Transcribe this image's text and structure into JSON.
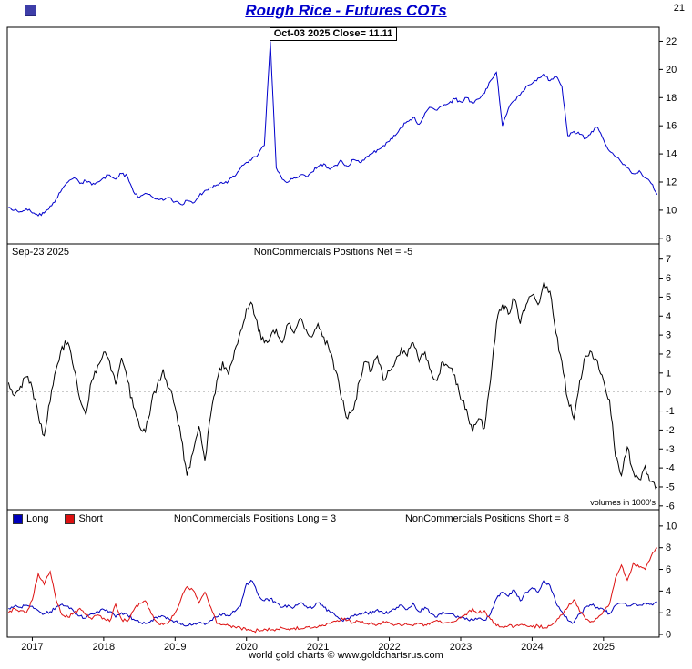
{
  "window": {
    "corner_number": "21"
  },
  "header": {
    "title": "Rough Rice - Futures COTs"
  },
  "footer": {
    "credit": "world gold charts © www.goldchartsrus.com"
  },
  "colors": {
    "title": "#0000cc",
    "price": "#0000cc",
    "net": "#000000",
    "long": "#0000bb",
    "short": "#dd1111",
    "axis_text": "#000000",
    "border": "#000000"
  },
  "x_axis": {
    "start": 2016.667,
    "step_years": 0.083333,
    "tick_years": [
      2017,
      2018,
      2019,
      2020,
      2021,
      2022,
      2023,
      2024,
      2025
    ]
  },
  "chart_data": [
    {
      "type": "line",
      "panel": "price",
      "label": "Oct-03 2025  Close= 11.11",
      "ylim": [
        7.6,
        23.0
      ],
      "yticks": [
        8,
        10,
        12,
        14,
        16,
        18,
        20,
        22
      ],
      "series": [
        {
          "name": "Close",
          "color": "#0000cc",
          "values": [
            10.2,
            10.0,
            9.9,
            10.1,
            9.8,
            9.6,
            9.8,
            10.3,
            10.8,
            11.5,
            12.0,
            12.3,
            11.9,
            12.1,
            11.8,
            12.0,
            12.3,
            12.5,
            12.2,
            12.6,
            12.4,
            11.3,
            10.9,
            11.2,
            11.0,
            10.8,
            10.7,
            10.9,
            10.6,
            10.4,
            10.7,
            10.5,
            11.0,
            11.4,
            11.6,
            11.8,
            11.9,
            12.1,
            12.4,
            13.0,
            13.4,
            13.7,
            14.0,
            14.6,
            22.0,
            13.0,
            12.2,
            12.0,
            12.3,
            12.5,
            12.4,
            12.7,
            13.1,
            13.3,
            12.9,
            13.2,
            13.5,
            13.1,
            13.6,
            13.4,
            13.7,
            14.0,
            14.3,
            14.6,
            14.9,
            15.3,
            15.9,
            16.3,
            16.6,
            16.1,
            16.9,
            17.3,
            17.1,
            17.4,
            17.6,
            17.9,
            17.7,
            18.0,
            17.6,
            17.9,
            18.3,
            19.2,
            19.8,
            16.0,
            17.2,
            17.8,
            18.2,
            18.8,
            19.0,
            19.4,
            19.7,
            19.2,
            19.5,
            18.8,
            15.3,
            15.6,
            15.4,
            15.1,
            15.6,
            15.9,
            15.0,
            14.2,
            13.8,
            13.4,
            13.0,
            12.6,
            12.8,
            12.3,
            11.9,
            11.11
          ]
        }
      ]
    },
    {
      "type": "line",
      "panel": "net",
      "date_label": "Sep-23  2025",
      "label": "NonCommercials Positions Net = -5",
      "note": "volumes in 1000's",
      "ylim": [
        -6.2,
        7.8
      ],
      "yticks": [
        -6,
        -5,
        -4,
        -3,
        -2,
        -1,
        0,
        1,
        2,
        3,
        4,
        5,
        6,
        7
      ],
      "zero_line": true,
      "series": [
        {
          "name": "Net",
          "color": "#000000",
          "values": [
            0.5,
            -0.2,
            0.3,
            0.8,
            0.2,
            -1.2,
            -2.3,
            -0.5,
            1.2,
            2.4,
            2.6,
            1.2,
            -0.4,
            -1.2,
            0.6,
            1.4,
            2.1,
            1.6,
            0.4,
            1.8,
            0.6,
            -0.8,
            -1.8,
            -2.1,
            -0.6,
            0.4,
            1.2,
            0.2,
            -0.8,
            -2.4,
            -4.4,
            -3.2,
            -1.8,
            -3.6,
            -1.2,
            0.6,
            1.6,
            0.9,
            2.2,
            3.2,
            4.4,
            4.6,
            3.2,
            2.6,
            2.9,
            3.3,
            2.6,
            3.6,
            3.1,
            3.9,
            3.3,
            2.9,
            3.6,
            2.9,
            2.1,
            1.1,
            -0.4,
            -1.4,
            -0.9,
            0.6,
            1.6,
            1.1,
            1.9,
            0.6,
            1.1,
            1.6,
            2.3,
            1.9,
            2.6,
            1.6,
            2.1,
            1.1,
            0.6,
            1.6,
            1.3,
            0.9,
            -0.4,
            -0.9,
            -2.1,
            -1.4,
            -1.9,
            0.6,
            3.6,
            4.6,
            4.1,
            4.9,
            3.6,
            4.6,
            5.1,
            4.6,
            5.8,
            5.3,
            3.1,
            1.6,
            -0.4,
            -1.4,
            0.6,
            1.9,
            2.1,
            1.6,
            0.6,
            -0.4,
            -3.4,
            -4.4,
            -2.9,
            -4.2,
            -4.6,
            -3.9,
            -4.7,
            -5.0
          ]
        }
      ]
    },
    {
      "type": "line",
      "panel": "long_short",
      "legend": [
        {
          "name": "Long",
          "color": "#0000bb"
        },
        {
          "name": "Short",
          "color": "#dd1111"
        }
      ],
      "label_long": "NonCommercials Positions Long = 3",
      "label_short": "NonCommercials Positions Short = 8",
      "ylim": [
        -0.25,
        11.5
      ],
      "yticks": [
        0,
        2,
        4,
        6,
        8,
        10
      ],
      "series": [
        {
          "name": "Long",
          "color": "#0000bb",
          "values": [
            2.4,
            2.6,
            2.5,
            2.7,
            2.6,
            2.2,
            1.9,
            2.1,
            2.5,
            2.8,
            2.6,
            2.1,
            1.7,
            1.5,
            1.9,
            2.1,
            2.3,
            2.1,
            1.6,
            2.0,
            1.8,
            1.4,
            1.1,
            1.0,
            1.3,
            1.5,
            1.7,
            1.4,
            1.2,
            0.9,
            0.8,
            0.9,
            1.1,
            0.9,
            1.3,
            1.6,
            1.9,
            1.7,
            2.1,
            2.6,
            4.7,
            4.9,
            3.6,
            3.1,
            3.3,
            2.9,
            2.5,
            2.7,
            2.5,
            2.9,
            2.6,
            2.4,
            2.9,
            2.5,
            2.1,
            1.7,
            1.3,
            1.5,
            1.7,
            1.9,
            2.1,
            1.9,
            2.3,
            1.9,
            2.1,
            2.3,
            2.7,
            2.3,
            2.9,
            2.1,
            2.5,
            1.9,
            1.6,
            2.1,
            1.9,
            1.7,
            1.6,
            1.5,
            1.3,
            1.5,
            1.3,
            1.9,
            3.3,
            3.9,
            3.5,
            4.1,
            3.1,
            3.9,
            4.3,
            3.9,
            5.0,
            4.5,
            2.9,
            2.1,
            1.3,
            1.1,
            1.9,
            2.5,
            2.7,
            2.5,
            2.3,
            1.9,
            2.7,
            2.9,
            2.6,
            2.8,
            2.7,
            2.9,
            2.8,
            3.0
          ]
        },
        {
          "name": "Short",
          "color": "#dd1111",
          "values": [
            2.0,
            2.4,
            2.2,
            2.0,
            3.2,
            5.6,
            4.6,
            5.8,
            3.2,
            1.8,
            1.6,
            2.0,
            2.4,
            1.8,
            1.4,
            1.8,
            1.5,
            1.2,
            2.8,
            1.4,
            1.2,
            2.2,
            2.9,
            3.1,
            1.9,
            1.1,
            0.9,
            1.2,
            2.0,
            3.3,
            4.4,
            4.1,
            2.9,
            3.9,
            2.5,
            1.0,
            0.9,
            0.8,
            0.7,
            0.6,
            0.4,
            0.3,
            0.4,
            0.5,
            0.4,
            0.5,
            0.6,
            0.5,
            0.6,
            0.5,
            0.7,
            0.6,
            0.7,
            0.8,
            1.0,
            1.2,
            1.5,
            1.3,
            1.1,
            1.2,
            1.0,
            1.1,
            0.9,
            1.2,
            1.1,
            0.9,
            0.8,
            0.9,
            0.8,
            1.0,
            0.9,
            1.1,
            1.3,
            1.0,
            1.1,
            1.2,
            1.5,
            1.8,
            2.4,
            2.0,
            2.2,
            1.4,
            0.8,
            0.7,
            0.8,
            0.7,
            0.9,
            0.8,
            0.7,
            0.8,
            0.6,
            0.8,
            1.2,
            1.8,
            2.5,
            3.2,
            2.1,
            1.4,
            1.2,
            1.5,
            2.2,
            2.8,
            5.2,
            6.4,
            5.0,
            6.6,
            6.2,
            6.0,
            7.2,
            8.0
          ]
        }
      ]
    }
  ]
}
